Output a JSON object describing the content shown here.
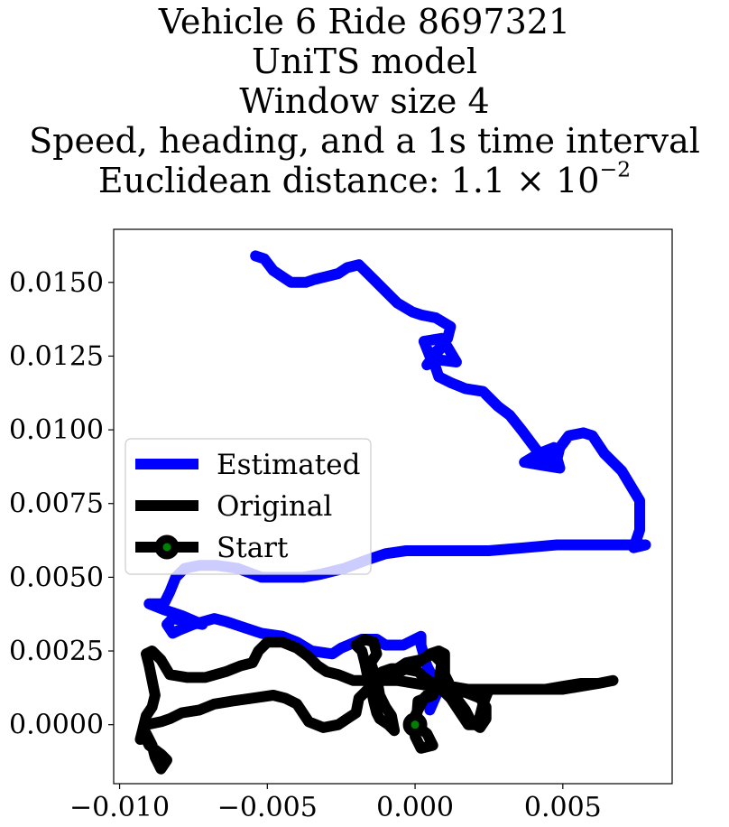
{
  "chart_data": {
    "type": "line",
    "title_lines": [
      "Vehicle 6 Ride 8697321",
      "UniTS model",
      "Window size 4",
      "Speed, heading, and a 1s time interval"
    ],
    "title_distance_prefix": "Euclidean distance: 1.1 × 10",
    "title_distance_exponent": "−2",
    "xlim": [
      -0.0102,
      0.0087
    ],
    "ylim": [
      -0.002,
      0.0168
    ],
    "xticks": [
      -0.01,
      -0.005,
      0.0,
      0.005
    ],
    "xtick_labels": [
      "−0.010",
      "−0.005",
      "0.000",
      "0.005"
    ],
    "yticks": [
      0.0,
      0.0025,
      0.005,
      0.0075,
      0.01,
      0.0125,
      0.015
    ],
    "ytick_labels": [
      "0.0000",
      "0.0025",
      "0.0050",
      "0.0075",
      "0.0100",
      "0.0125",
      "0.0150"
    ],
    "grid": false,
    "legend_position": "center-left",
    "series": [
      {
        "name": "Estimated",
        "color": "#0000ff",
        "points": [
          [
            0.0005,
            0.0005
          ],
          [
            0.0008,
            0.0012
          ],
          [
            0.0004,
            0.002
          ],
          [
            0.0002,
            0.0027
          ],
          [
            0.0002,
            0.003
          ],
          [
            -0.0004,
            0.0027
          ],
          [
            -0.001,
            0.0027
          ],
          [
            -0.0013,
            0.0029
          ],
          [
            -0.0018,
            0.0029
          ],
          [
            -0.0025,
            0.0026
          ],
          [
            -0.0028,
            0.0024
          ],
          [
            -0.0035,
            0.0025
          ],
          [
            -0.004,
            0.0028
          ],
          [
            -0.0045,
            0.003
          ],
          [
            -0.0052,
            0.0031
          ],
          [
            -0.0058,
            0.0033
          ],
          [
            -0.0064,
            0.0035
          ],
          [
            -0.0068,
            0.0036
          ],
          [
            -0.0075,
            0.0034
          ],
          [
            -0.008,
            0.0032
          ],
          [
            -0.0082,
            0.0031
          ],
          [
            -0.0084,
            0.0034
          ],
          [
            -0.0082,
            0.0036
          ],
          [
            -0.0077,
            0.0035
          ],
          [
            -0.0072,
            0.0034
          ],
          [
            -0.0079,
            0.0037
          ],
          [
            -0.0085,
            0.0039
          ],
          [
            -0.009,
            0.0041
          ],
          [
            -0.0085,
            0.0041
          ],
          [
            -0.0083,
            0.0045
          ],
          [
            -0.0081,
            0.005
          ],
          [
            -0.0078,
            0.0053
          ],
          [
            -0.0073,
            0.0054
          ],
          [
            -0.0067,
            0.0054
          ],
          [
            -0.006,
            0.0053
          ],
          [
            -0.0052,
            0.005
          ],
          [
            -0.0044,
            0.005
          ],
          [
            -0.0038,
            0.005
          ],
          [
            -0.0032,
            0.0051
          ],
          [
            -0.0024,
            0.0053
          ],
          [
            -0.0016,
            0.0056
          ],
          [
            -0.001,
            0.0058
          ],
          [
            -0.0003,
            0.0059
          ],
          [
            0.0006,
            0.0059
          ],
          [
            0.0014,
            0.0059
          ],
          [
            0.0025,
            0.0059
          ],
          [
            0.0037,
            0.006
          ],
          [
            0.0048,
            0.0061
          ],
          [
            0.0058,
            0.0061
          ],
          [
            0.0068,
            0.0061
          ],
          [
            0.0075,
            0.0061
          ],
          [
            0.0078,
            0.0061
          ],
          [
            0.0074,
            0.006
          ],
          [
            0.0076,
            0.0066
          ],
          [
            0.0076,
            0.0076
          ],
          [
            0.0073,
            0.0081
          ],
          [
            0.007,
            0.0086
          ],
          [
            0.0064,
            0.0092
          ],
          [
            0.006,
            0.0098
          ],
          [
            0.0057,
            0.0099
          ],
          [
            0.0052,
            0.0098
          ],
          [
            0.0049,
            0.0094
          ],
          [
            0.0048,
            0.009
          ],
          [
            0.0049,
            0.0087
          ],
          [
            0.0047,
            0.0094
          ],
          [
            0.0042,
            0.0092
          ],
          [
            0.0037,
            0.0089
          ],
          [
            0.0043,
            0.0088
          ],
          [
            0.0049,
            0.0087
          ],
          [
            0.0042,
            0.0092
          ],
          [
            0.0036,
            0.01
          ],
          [
            0.0032,
            0.0105
          ],
          [
            0.0028,
            0.0108
          ],
          [
            0.0023,
            0.0113
          ],
          [
            0.0017,
            0.0114
          ],
          [
            0.0012,
            0.0116
          ],
          [
            0.0008,
            0.0118
          ],
          [
            0.0006,
            0.0124
          ],
          [
            0.0014,
            0.0123
          ],
          [
            0.0011,
            0.0128
          ],
          [
            0.0009,
            0.0131
          ],
          [
            0.0003,
            0.013
          ],
          [
            0.0005,
            0.0125
          ],
          [
            0.0009,
            0.0128
          ],
          [
            0.0004,
            0.0122
          ],
          [
            0.0007,
            0.0126
          ],
          [
            0.0011,
            0.0131
          ],
          [
            0.0012,
            0.0135
          ],
          [
            0.0007,
            0.0138
          ],
          [
            0.0002,
            0.0139
          ],
          [
            -0.0001,
            0.014
          ],
          [
            -0.0006,
            0.0143
          ],
          [
            -0.0009,
            0.0146
          ],
          [
            -0.0014,
            0.0151
          ],
          [
            -0.0019,
            0.0156
          ],
          [
            -0.0023,
            0.0155
          ],
          [
            -0.0026,
            0.0153
          ],
          [
            -0.003,
            0.0152
          ],
          [
            -0.0034,
            0.0151
          ],
          [
            -0.0037,
            0.015
          ],
          [
            -0.0042,
            0.015
          ],
          [
            -0.0045,
            0.0152
          ],
          [
            -0.0048,
            0.0154
          ],
          [
            -0.0051,
            0.0158
          ],
          [
            -0.0054,
            0.0159
          ]
        ]
      },
      {
        "name": "Original",
        "color": "#000000",
        "points": [
          [
            0.0,
            0.0
          ],
          [
            0.0004,
            -0.0003
          ],
          [
            0.0006,
            -0.0007
          ],
          [
            0.0002,
            -0.0008
          ],
          [
            0.0,
            -0.0004
          ],
          [
            0.0001,
            0.0008
          ],
          [
            0.0006,
            0.001
          ],
          [
            0.0008,
            0.0014
          ],
          [
            0.0009,
            0.0021
          ],
          [
            0.0006,
            0.0024
          ],
          [
            0.0002,
            0.0022
          ],
          [
            -0.0003,
            0.0021
          ],
          [
            -0.0006,
            0.0019
          ],
          [
            -0.0011,
            0.0018
          ],
          [
            -0.0014,
            0.0016
          ],
          [
            -0.0016,
            0.0012
          ],
          [
            -0.0019,
            0.0009
          ],
          [
            -0.002,
            0.0004
          ],
          [
            -0.0023,
            0.0002
          ],
          [
            -0.0026,
            0.0
          ],
          [
            -0.0031,
            -0.0001
          ],
          [
            -0.0036,
            0.0001
          ],
          [
            -0.004,
            0.0007
          ],
          [
            -0.0044,
            0.0009
          ],
          [
            -0.0048,
            0.001
          ],
          [
            -0.0055,
            0.0009
          ],
          [
            -0.0062,
            0.0008
          ],
          [
            -0.0068,
            0.0007
          ],
          [
            -0.0073,
            0.0005
          ],
          [
            -0.0079,
            0.0004
          ],
          [
            -0.0083,
            0.0002
          ],
          [
            -0.0086,
            0.0001
          ],
          [
            -0.0091,
            0.0
          ],
          [
            -0.0092,
            -0.0003
          ],
          [
            -0.009,
            -0.0007
          ],
          [
            -0.0086,
            -0.001
          ],
          [
            -0.0084,
            -0.0012
          ],
          [
            -0.0086,
            -0.0015
          ],
          [
            -0.0088,
            -0.0011
          ],
          [
            -0.0089,
            -0.0007
          ],
          [
            -0.0091,
            -0.0003
          ],
          [
            -0.0093,
            -0.0005
          ],
          [
            -0.0091,
            0.0003
          ],
          [
            -0.0089,
            0.0006
          ],
          [
            -0.0088,
            0.001
          ],
          [
            -0.0089,
            0.0015
          ],
          [
            -0.009,
            0.002
          ],
          [
            -0.0091,
            0.0024
          ],
          [
            -0.0089,
            0.0025
          ],
          [
            -0.0086,
            0.0022
          ],
          [
            -0.0083,
            0.0017
          ],
          [
            -0.0077,
            0.0016
          ],
          [
            -0.0071,
            0.0016
          ],
          [
            -0.0064,
            0.0018
          ],
          [
            -0.0059,
            0.002
          ],
          [
            -0.0055,
            0.0021
          ],
          [
            -0.0053,
            0.0025
          ],
          [
            -0.005,
            0.0028
          ],
          [
            -0.0045,
            0.0028
          ],
          [
            -0.004,
            0.0026
          ],
          [
            -0.0036,
            0.0023
          ],
          [
            -0.0033,
            0.002
          ],
          [
            -0.003,
            0.0018
          ],
          [
            -0.0026,
            0.0017
          ],
          [
            -0.0021,
            0.0015
          ],
          [
            -0.0017,
            0.0015
          ],
          [
            -0.0012,
            0.0015
          ],
          [
            -0.0006,
            0.0015
          ],
          [
            0.0,
            0.0014
          ],
          [
            0.0006,
            0.0013
          ],
          [
            0.0012,
            0.0013
          ],
          [
            0.0018,
            0.0012
          ],
          [
            0.0025,
            0.0012
          ],
          [
            0.0031,
            0.0012
          ],
          [
            0.0037,
            0.0012
          ],
          [
            0.0044,
            0.0012
          ],
          [
            0.005,
            0.0013
          ],
          [
            0.0056,
            0.0014
          ],
          [
            0.0062,
            0.0014
          ],
          [
            0.0067,
            0.0015
          ],
          [
            0.0062,
            0.0014
          ],
          [
            0.0056,
            0.0013
          ],
          [
            0.005,
            0.0012
          ],
          [
            0.0044,
            0.0012
          ],
          [
            0.0036,
            0.0012
          ],
          [
            0.003,
            0.0012
          ],
          [
            0.0025,
            0.0012
          ],
          [
            0.0023,
            0.0007
          ],
          [
            0.0022,
            0.0003
          ],
          [
            0.0021,
            0.0
          ],
          [
            0.0018,
            0.0
          ],
          [
            0.0016,
            0.0003
          ],
          [
            0.0014,
            0.0006
          ],
          [
            0.0012,
            0.0009
          ],
          [
            0.0009,
            0.0012
          ],
          [
            0.0006,
            0.0014
          ],
          [
            0.0003,
            0.0016
          ],
          [
            0.0001,
            0.0018
          ],
          [
            -0.0004,
            0.0019
          ],
          [
            -0.0008,
            0.0019
          ],
          [
            -0.0011,
            0.0018
          ],
          [
            -0.0013,
            0.0016
          ],
          [
            -0.0012,
            0.001
          ],
          [
            -0.001,
            0.0006
          ],
          [
            -0.0008,
            0.0003
          ],
          [
            -0.0007,
            -0.0002
          ],
          [
            -0.0009,
            0.0
          ],
          [
            -0.0012,
            0.0002
          ],
          [
            -0.0013,
            0.0004
          ],
          [
            -0.0014,
            0.0008
          ],
          [
            -0.0015,
            0.0013
          ],
          [
            -0.0016,
            0.0016
          ],
          [
            -0.0017,
            0.0021
          ],
          [
            -0.0018,
            0.0025
          ],
          [
            -0.002,
            0.0027
          ],
          [
            -0.0017,
            0.0029
          ],
          [
            -0.0014,
            0.0028
          ],
          [
            -0.0013,
            0.0024
          ],
          [
            -0.0015,
            0.0021
          ],
          [
            -0.0014,
            0.0018
          ],
          [
            -0.0011,
            0.0016
          ],
          [
            -0.0007,
            0.0017
          ],
          [
            -0.0003,
            0.0019
          ],
          [
            0.0001,
            0.0021
          ],
          [
            0.0005,
            0.0024
          ],
          [
            0.0008,
            0.0025
          ],
          [
            0.001,
            0.0024
          ],
          [
            0.001,
            0.0017
          ],
          [
            0.0014,
            0.0009
          ],
          [
            0.0017,
            0.0005
          ],
          [
            0.0019,
            0.0001
          ],
          [
            0.0022,
            -0.0001
          ],
          [
            0.0024,
            0.0002
          ],
          [
            0.0024,
            0.0006
          ],
          [
            0.0022,
            0.0009
          ],
          [
            0.0017,
            0.0011
          ],
          [
            0.0013,
            0.0011
          ],
          [
            0.001,
            0.0012
          ],
          [
            0.0006,
            0.0012
          ],
          [
            0.0003,
            0.0009
          ],
          [
            0.0001,
            0.0005
          ],
          [
            -0.0001,
            0.0001
          ]
        ]
      }
    ],
    "start": {
      "name": "Start",
      "point": [
        0.0,
        0.0
      ],
      "marker_edge_color": "#000000",
      "marker_face_color": "#008000"
    }
  }
}
